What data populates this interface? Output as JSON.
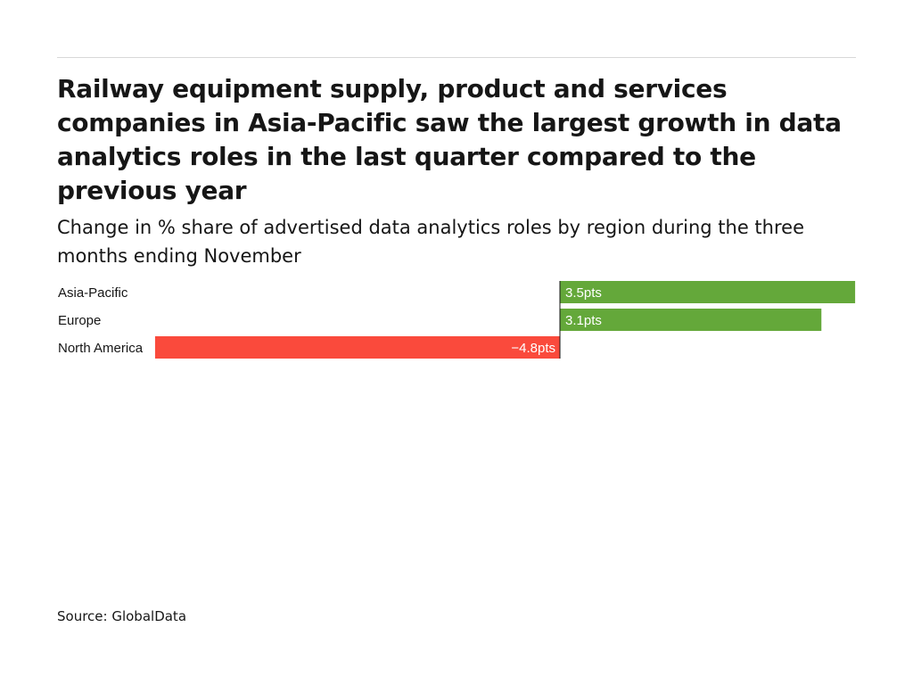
{
  "title": "Railway equipment supply, product and services companies in Asia-Pacific saw the largest growth in data analytics roles in the last quarter compared to the previous year",
  "subtitle": "Change in % share of advertised data analytics roles by region during the three months ending November",
  "source": "Source: GlobalData",
  "chart_data": {
    "type": "bar",
    "orientation": "horizontal",
    "categories": [
      "Asia-Pacific",
      "Europe",
      "North America"
    ],
    "values": [
      3.5,
      3.1,
      -4.8
    ],
    "labels": [
      "3.5pts",
      "3.1pts",
      "−4.8pts"
    ],
    "xlim": [
      -4.8,
      3.5
    ],
    "grid": false,
    "colors": {
      "positive": "#64a83a",
      "negative": "#fa4a3c"
    }
  }
}
